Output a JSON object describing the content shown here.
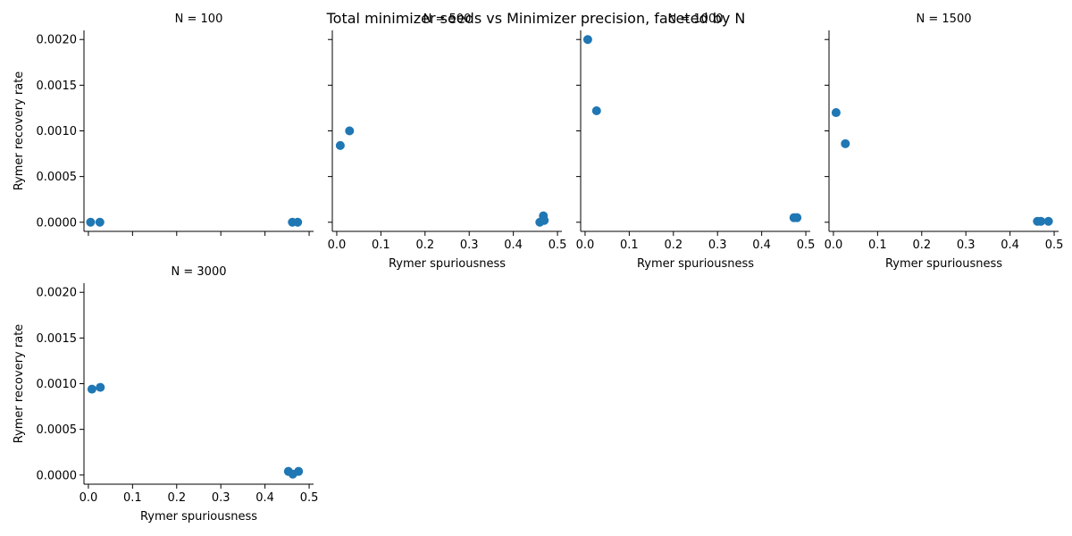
{
  "chart_data": {
    "type": "scatter",
    "suptitle": "Total minimizer seeds vs Minimizer precision, faceted by N",
    "xlabel": "Rymer spuriousness",
    "ylabel": "Rymer recovery rate",
    "xlim": [
      -0.01,
      0.51
    ],
    "ylim": [
      -0.0001,
      0.0021
    ],
    "xticks": [
      "0.0",
      "0.1",
      "0.2",
      "0.3",
      "0.4",
      "0.5"
    ],
    "yticks": [
      "0.0000",
      "0.0005",
      "0.0010",
      "0.0015",
      "0.0020"
    ],
    "marker_color": "#1f77b4",
    "facets": [
      {
        "title": "N = 100",
        "points": [
          [
            0.005,
            0.0
          ],
          [
            0.026,
            0.0
          ],
          [
            0.462,
            0.0
          ],
          [
            0.474,
            0.0
          ]
        ]
      },
      {
        "title": "N = 500",
        "points": [
          [
            0.008,
            0.00084
          ],
          [
            0.029,
            0.001
          ],
          [
            0.46,
            0.0
          ],
          [
            0.468,
            7e-05
          ],
          [
            0.47,
            2e-05
          ]
        ]
      },
      {
        "title": "N = 1000",
        "points": [
          [
            0.006,
            0.002
          ],
          [
            0.026,
            0.00122
          ],
          [
            0.473,
            5e-05
          ],
          [
            0.48,
            5e-05
          ]
        ]
      },
      {
        "title": "N = 1500",
        "points": [
          [
            0.006,
            0.0012
          ],
          [
            0.027,
            0.00086
          ],
          [
            0.462,
            1e-05
          ],
          [
            0.47,
            1e-05
          ],
          [
            0.487,
            1e-05
          ]
        ]
      },
      {
        "title": "N = 3000",
        "points": [
          [
            0.008,
            0.00094
          ],
          [
            0.027,
            0.00096
          ],
          [
            0.453,
            4e-05
          ],
          [
            0.463,
            1e-05
          ],
          [
            0.476,
            4e-05
          ]
        ]
      }
    ]
  }
}
